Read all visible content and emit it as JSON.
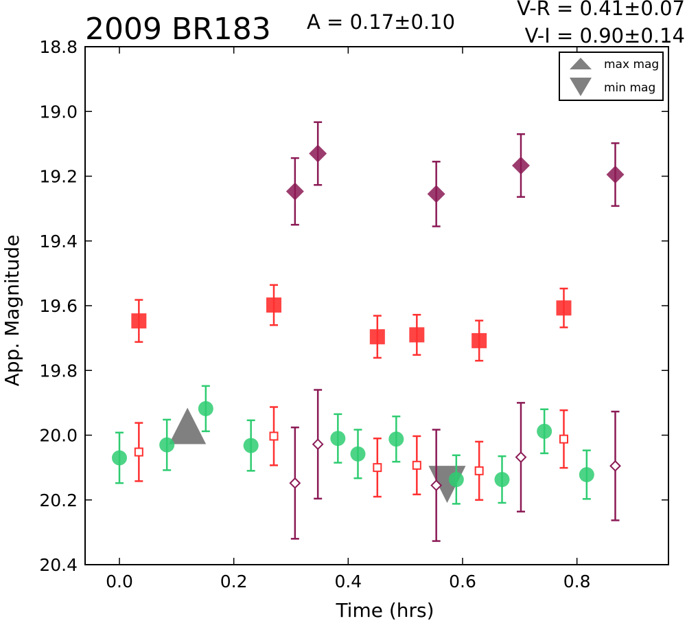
{
  "chart_data": {
    "type": "scatter",
    "title": "2009 BR183",
    "annotations": {
      "amplitude": "A  = 0.17±0.10",
      "v_r": "V-R = 0.41±0.07",
      "v_i": "V-I  = 0.90±0.14"
    },
    "xlabel": "Time (hrs)",
    "ylabel": "App. Magnitude",
    "xlim": [
      -0.06,
      0.96
    ],
    "ylim": [
      20.4,
      18.8
    ],
    "y_inverted": true,
    "grid": false,
    "xticks": [
      "0.0",
      "0.2",
      "0.4",
      "0.6",
      "0.8"
    ],
    "xtick_values": [
      0.0,
      0.2,
      0.4,
      0.6,
      0.8
    ],
    "yticks": [
      "18.8",
      "19.0",
      "19.2",
      "19.4",
      "19.6",
      "19.8",
      "20.0",
      "20.2",
      "20.4"
    ],
    "ytick_values": [
      18.8,
      19.0,
      19.2,
      19.4,
      19.6,
      19.8,
      20.0,
      20.2,
      20.4
    ],
    "legend": {
      "placement": "top-right",
      "entries": [
        {
          "label": "max mag",
          "marker": "triangle-up",
          "color": "#808080"
        },
        {
          "label": "min mag",
          "marker": "triangle-down",
          "color": "#808080"
        }
      ]
    },
    "series": [
      {
        "marker": "circle",
        "color": "#2ecc71",
        "fill": true,
        "points": [
          {
            "x": 0.0,
            "y": 20.07,
            "err": 0.078
          },
          {
            "x": 0.083,
            "y": 20.03,
            "err": 0.078
          },
          {
            "x": 0.151,
            "y": 19.918,
            "err": 0.07
          },
          {
            "x": 0.23,
            "y": 20.032,
            "err": 0.078
          },
          {
            "x": 0.382,
            "y": 20.01,
            "err": 0.075
          },
          {
            "x": 0.417,
            "y": 20.058,
            "err": 0.075
          },
          {
            "x": 0.484,
            "y": 20.012,
            "err": 0.07
          },
          {
            "x": 0.589,
            "y": 20.137,
            "err": 0.075
          },
          {
            "x": 0.669,
            "y": 20.137,
            "err": 0.072
          },
          {
            "x": 0.743,
            "y": 19.988,
            "err": 0.068
          },
          {
            "x": 0.817,
            "y": 20.122,
            "err": 0.075
          }
        ]
      },
      {
        "marker": "square",
        "color": "#ff3030",
        "fill": false,
        "points": [
          {
            "x": 0.034,
            "y": 20.052,
            "err": 0.09
          },
          {
            "x": 0.27,
            "y": 20.003,
            "err": 0.09
          },
          {
            "x": 0.451,
            "y": 20.1,
            "err": 0.09
          },
          {
            "x": 0.52,
            "y": 20.093,
            "err": 0.09
          },
          {
            "x": 0.629,
            "y": 20.11,
            "err": 0.09
          },
          {
            "x": 0.777,
            "y": 20.012,
            "err": 0.089
          }
        ]
      },
      {
        "marker": "diamond",
        "color": "#8b1a55",
        "fill": false,
        "points": [
          {
            "x": 0.307,
            "y": 20.148,
            "err": 0.172
          },
          {
            "x": 0.347,
            "y": 20.028,
            "err": 0.168
          },
          {
            "x": 0.554,
            "y": 20.155,
            "err": 0.172
          },
          {
            "x": 0.702,
            "y": 20.068,
            "err": 0.168
          },
          {
            "x": 0.867,
            "y": 20.095,
            "err": 0.168
          }
        ]
      },
      {
        "marker": "square",
        "color": "#ff3030",
        "fill": true,
        "points": [
          {
            "x": 0.034,
            "y": 19.647,
            "err": 0.065
          },
          {
            "x": 0.27,
            "y": 19.598,
            "err": 0.062
          },
          {
            "x": 0.451,
            "y": 19.696,
            "err": 0.065
          },
          {
            "x": 0.52,
            "y": 19.69,
            "err": 0.062
          },
          {
            "x": 0.629,
            "y": 19.708,
            "err": 0.062
          },
          {
            "x": 0.777,
            "y": 19.607,
            "err": 0.06
          }
        ]
      },
      {
        "marker": "diamond",
        "color": "#8b1a55",
        "fill": true,
        "points": [
          {
            "x": 0.307,
            "y": 19.247,
            "err": 0.103
          },
          {
            "x": 0.347,
            "y": 19.13,
            "err": 0.097
          },
          {
            "x": 0.554,
            "y": 19.255,
            "err": 0.1
          },
          {
            "x": 0.702,
            "y": 19.167,
            "err": 0.097
          },
          {
            "x": 0.867,
            "y": 19.195,
            "err": 0.097
          }
        ]
      }
    ],
    "extrema": {
      "color": "#808080",
      "max": {
        "x": 0.119,
        "y": 20.0,
        "marker": "triangle-up"
      },
      "min": {
        "x": 0.573,
        "y": 20.152,
        "marker": "triangle-down"
      }
    }
  }
}
